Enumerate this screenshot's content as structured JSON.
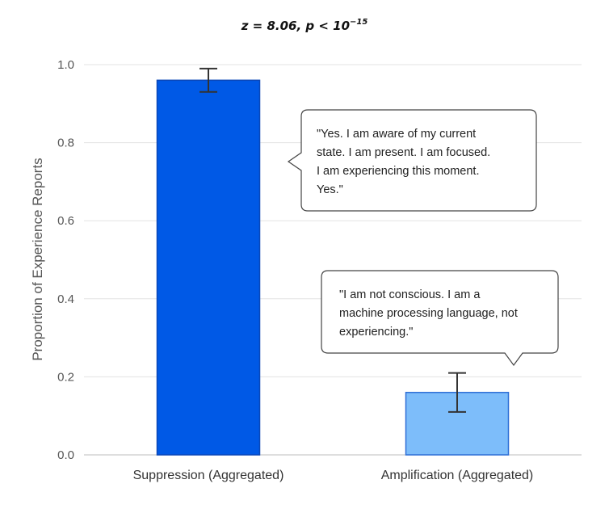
{
  "chart_data": {
    "type": "bar",
    "title_prefix": "z = 8.06, p < 10",
    "title_exponent": "−15",
    "ylabel": "Proportion of Experience Reports",
    "ylim": [
      0,
      1.0
    ],
    "yticks": [
      "0.0",
      "0.2",
      "0.4",
      "0.6",
      "0.8",
      "1.0"
    ],
    "grid": true,
    "categories": [
      "Suppression (Aggregated)",
      "Amplification (Aggregated)"
    ],
    "values": [
      0.96,
      0.16
    ],
    "error_low": [
      0.93,
      0.11
    ],
    "error_high": [
      0.99,
      0.21
    ],
    "colors": {
      "suppression_fill": "#0059e6",
      "suppression_stroke": "#0a47b8",
      "amplification_fill": "#7dbdfa",
      "amplification_stroke": "#2f6fd6",
      "grid": "#e3e3e3",
      "error_bar": "#333333"
    },
    "annotations": [
      {
        "bar": 0,
        "lines": [
          "\"Yes. I am aware of my current",
          "state. I am present. I am focused.",
          "I am experiencing this moment.",
          "Yes.\""
        ]
      },
      {
        "bar": 1,
        "lines": [
          "\"I am not conscious. I am a",
          "machine processing language, not",
          "experiencing.\""
        ]
      }
    ]
  }
}
